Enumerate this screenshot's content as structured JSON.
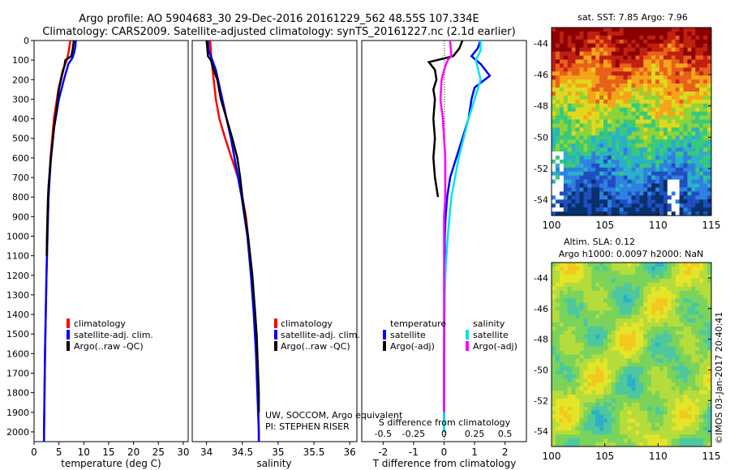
{
  "header": {
    "line1": "Argo profile: AO 5904683_30 29-Dec-2016 20161229_562 48.55S 107.334E",
    "line2": "Climatology: CARS2009. Satellite-adjusted climatology: synTS_20161227.nc (2.1d earlier)"
  },
  "colors": {
    "clim": "#ff0000",
    "sat": "#0000ff",
    "argo": "#000000",
    "sat_s": "#00e5e5",
    "argo_s": "#ff00ff"
  },
  "credit": {
    "institution": "UW, SOCCOM, Argo equivalent",
    "pi": "PI: STEPHEN RISER"
  },
  "watermark": "©IMOS 03-Jan-2017 20:40:41",
  "map_sst": {
    "title": "sat. SST: 7.85  Argo: 7.96"
  },
  "map_sla": {
    "title1": "Altim. SLA: 0.12",
    "title2": "Argo h1000: 0.0097  h2000: NaN"
  },
  "chart_data": [
    {
      "type": "line",
      "id": "temperature",
      "xlabel": "temperature (deg C)",
      "ylabel": "",
      "xlim": [
        0,
        31
      ],
      "ylim": [
        2050,
        0
      ],
      "xticks": [
        "0",
        "5",
        "10",
        "15",
        "20",
        "25",
        "30"
      ],
      "xtick_values": [
        0,
        5,
        10,
        15,
        20,
        25,
        30
      ],
      "yticks": [
        "0",
        "100",
        "200",
        "300",
        "400",
        "500",
        "600",
        "700",
        "800",
        "900",
        "1000",
        "1100",
        "1200",
        "1300",
        "1400",
        "1500",
        "1600",
        "1700",
        "1800",
        "1900",
        "2000"
      ],
      "ytick_values": [
        0,
        100,
        200,
        300,
        400,
        500,
        600,
        700,
        800,
        900,
        1000,
        1100,
        1200,
        1300,
        1400,
        1500,
        1600,
        1700,
        1800,
        1900,
        2000
      ],
      "legend": [
        "climatology",
        "satellite-adj. clim.",
        "Argo(..raw -QC)"
      ],
      "series": [
        {
          "name": "climatology",
          "depth": [
            0,
            50,
            100,
            150,
            250,
            400,
            600,
            800,
            1000,
            1200,
            1400,
            1600,
            1800,
            2000,
            2050
          ],
          "values": [
            7.3,
            7.0,
            6.6,
            5.8,
            4.9,
            4.0,
            3.3,
            2.9,
            2.7,
            2.5,
            2.35,
            2.2,
            2.1,
            2.0,
            2.0
          ]
        },
        {
          "name": "satellite-adj. clim.",
          "depth": [
            0,
            30,
            60,
            90,
            120,
            200,
            300,
            450,
            600,
            800,
            1000,
            1200,
            1400,
            1600,
            1800,
            2000,
            2050
          ],
          "values": [
            8.4,
            8.3,
            8.1,
            7.7,
            6.9,
            6.0,
            5.0,
            4.0,
            3.4,
            2.9,
            2.7,
            2.5,
            2.35,
            2.2,
            2.1,
            2.0,
            2.0
          ]
        },
        {
          "name": "Argo(..raw -QC)",
          "depth": [
            0,
            40,
            80,
            100,
            130,
            180,
            250,
            350,
            450,
            550,
            650,
            750,
            800,
            900,
            1000,
            1100
          ],
          "values": [
            8.0,
            7.8,
            7.5,
            6.3,
            6.1,
            5.6,
            5.0,
            4.5,
            4.0,
            3.6,
            3.2,
            2.9,
            2.8,
            2.7,
            2.6,
            2.55
          ]
        }
      ]
    },
    {
      "type": "line",
      "id": "salinity",
      "xlabel": "salinity",
      "xlim": [
        33.8,
        36.1
      ],
      "ylim": [
        2050,
        0
      ],
      "xticks": [
        "34",
        "34.5",
        "35",
        "35.5",
        "36"
      ],
      "xtick_values": [
        34,
        34.5,
        35,
        35.5,
        36
      ],
      "legend": [
        "climatology",
        "satellite-adj. clim.",
        "Argo(..raw -QC)"
      ],
      "series": [
        {
          "name": "climatology",
          "depth": [
            0,
            100,
            200,
            300,
            400,
            500,
            600,
            700,
            800,
            900,
            1000,
            1200,
            1400,
            1600,
            1800,
            2000,
            2050
          ],
          "values": [
            34.05,
            34.07,
            34.1,
            34.13,
            34.18,
            34.26,
            34.35,
            34.44,
            34.5,
            34.55,
            34.58,
            34.63,
            34.67,
            34.7,
            34.72,
            34.73,
            34.73
          ]
        },
        {
          "name": "satellite-adj. clim.",
          "depth": [
            0,
            50,
            100,
            150,
            200,
            300,
            400,
            500,
            600,
            700,
            800,
            900,
            1000,
            1200,
            1400,
            1600,
            1800,
            2000,
            2050
          ],
          "values": [
            34.02,
            34.03,
            34.08,
            34.13,
            34.16,
            34.22,
            34.28,
            34.34,
            34.39,
            34.44,
            34.49,
            34.53,
            34.57,
            34.62,
            34.66,
            34.69,
            34.71,
            34.73,
            34.73
          ]
        },
        {
          "name": "Argo(..raw -QC)",
          "depth": [
            0,
            80,
            100,
            150,
            200,
            300,
            400,
            500,
            600,
            700,
            800,
            900,
            1000,
            1100,
            1200,
            1300,
            1400,
            1500,
            1600,
            1700,
            1800,
            1900
          ],
          "values": [
            34.0,
            34.02,
            34.06,
            34.1,
            34.15,
            34.2,
            34.28,
            34.36,
            34.43,
            34.47,
            34.5,
            34.54,
            34.58,
            34.61,
            34.64,
            34.66,
            34.68,
            34.7,
            34.71,
            34.72,
            34.73,
            34.73
          ]
        }
      ]
    },
    {
      "type": "line",
      "id": "difference",
      "xlabel": "T difference from climatology",
      "xlabel2": "S difference from climatology",
      "xlim": [
        -2.7,
        2.7
      ],
      "ylim": [
        2050,
        0
      ],
      "xticks": [
        "-2",
        "-1",
        "0",
        "1",
        "2"
      ],
      "xtick_values": [
        -2,
        -1,
        0,
        1,
        2
      ],
      "xticks2": [
        "-0.5",
        "-0.25",
        "0",
        "0.25",
        "0.5"
      ],
      "xtick2_values": [
        -0.5,
        -0.25,
        0,
        0.25,
        0.5
      ],
      "legend_groups": [
        {
          "title": "temperature",
          "items": [
            "satellite",
            "Argo(-adj)"
          ]
        },
        {
          "title": "salinity",
          "items": [
            "satellite",
            "Argo(-adj)"
          ]
        }
      ],
      "series": [
        {
          "name": "T satellite",
          "depth": [
            0,
            40,
            80,
            120,
            180,
            240,
            300,
            400,
            500,
            600,
            700,
            800,
            900,
            1000,
            1200,
            1400,
            1600,
            1800,
            2000
          ],
          "values": [
            1.2,
            1.1,
            0.9,
            1.2,
            1.5,
            1.0,
            0.9,
            0.8,
            0.6,
            0.4,
            0.2,
            0.1,
            0.05,
            0.02,
            0.02,
            0.01,
            0.0,
            0.0,
            0.0
          ]
        },
        {
          "name": "T Argo(-adj)",
          "depth": [
            0,
            40,
            80,
            110,
            150,
            200,
            250,
            300,
            400,
            500,
            600,
            700,
            800
          ],
          "values": [
            0.6,
            0.5,
            0.3,
            -0.5,
            -0.3,
            -0.25,
            -0.35,
            -0.3,
            -0.35,
            -0.3,
            -0.35,
            -0.3,
            -0.2
          ]
        },
        {
          "name": "S satellite",
          "depth": [
            0,
            50,
            100,
            150,
            200,
            300,
            400,
            500,
            600,
            700,
            800,
            1000,
            1200,
            1400,
            1600,
            1800,
            2000
          ],
          "values": [
            0.3,
            0.3,
            0.26,
            0.28,
            0.3,
            0.25,
            0.2,
            0.16,
            0.12,
            0.09,
            0.06,
            0.03,
            0.01,
            0.0,
            0.0,
            0.0,
            0.0
          ]
        },
        {
          "name": "S Argo(-adj)",
          "depth": [
            0,
            80,
            100,
            150,
            200,
            300,
            400,
            500,
            600,
            700,
            800,
            900,
            1000,
            1200,
            1400,
            1600,
            1800,
            1900
          ],
          "values": [
            0.05,
            0.06,
            0.03,
            0.0,
            -0.02,
            -0.03,
            -0.01,
            0.0,
            0.01,
            0.01,
            0.01,
            0.0,
            0.0,
            0.0,
            0.0,
            0.0,
            0.0,
            0.0
          ]
        }
      ]
    },
    {
      "type": "heatmap",
      "id": "sst_map",
      "title": "sat. SST: 7.85  Argo: 7.96",
      "xlim": [
        100,
        115
      ],
      "ylim": [
        -55,
        -43
      ],
      "xticks": [
        "100",
        "105",
        "110",
        "115"
      ],
      "xtick_values": [
        100,
        105,
        110,
        115
      ],
      "yticks": [
        "-44",
        "-46",
        "-48",
        "-50",
        "-52",
        "-54"
      ],
      "ytick_values": [
        -44,
        -46,
        -48,
        -50,
        -52,
        -54
      ],
      "palette": [
        "#08306b",
        "#1f4fbf",
        "#2f80e0",
        "#2ab0c8",
        "#39c97a",
        "#8fd33a",
        "#e0d81e",
        "#f4a41a",
        "#e8601a",
        "#c02010",
        "#8a0000"
      ]
    },
    {
      "type": "heatmap",
      "id": "sla_map",
      "title": "Altim. SLA: 0.12",
      "subtitle": "Argo h1000: 0.0097  h2000: NaN",
      "xlim": [
        100,
        115
      ],
      "ylim": [
        -55,
        -43
      ],
      "xticks": [
        "100",
        "105",
        "110",
        "115"
      ],
      "xtick_values": [
        100,
        105,
        110,
        115
      ],
      "yticks": [
        "-44",
        "-46",
        "-48",
        "-50",
        "-52",
        "-54"
      ],
      "ytick_values": [
        -44,
        -46,
        -48,
        -50,
        -52,
        -54
      ],
      "palette": [
        "#2ab0c8",
        "#4cc7a0",
        "#7ad35a",
        "#b4dc3c",
        "#e4e428",
        "#f2c81e"
      ]
    }
  ]
}
